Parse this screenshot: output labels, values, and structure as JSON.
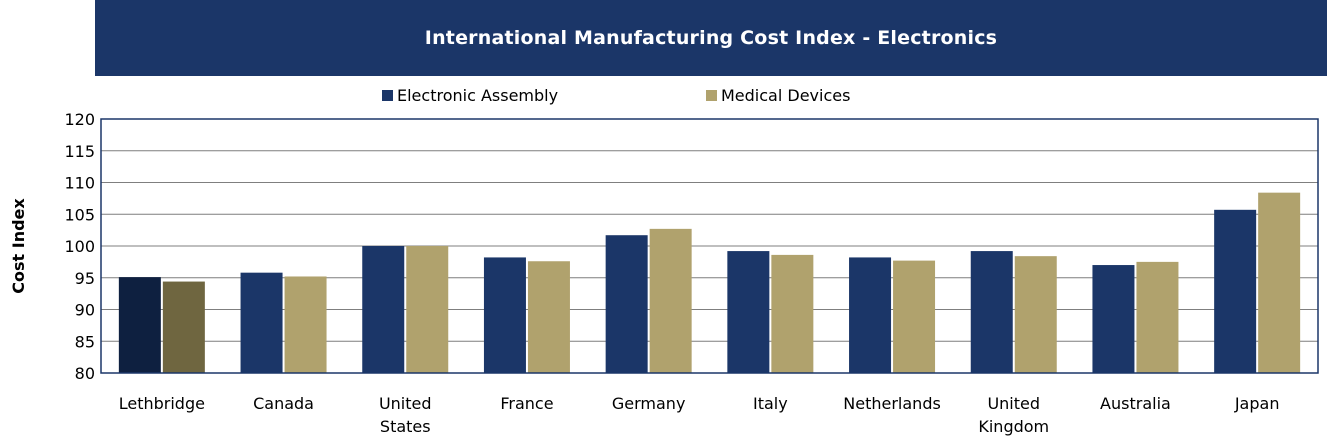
{
  "chart_data": {
    "type": "bar",
    "title": "International Manufacturing Cost Index - Electronics",
    "ylabel": "Cost Index",
    "xlabel": "",
    "ylim": [
      80,
      120
    ],
    "yticks": [
      80,
      85,
      90,
      95,
      100,
      105,
      110,
      115,
      120
    ],
    "grid": true,
    "legend_position": "top",
    "categories": [
      [
        "Lethbridge"
      ],
      [
        "Canada"
      ],
      [
        "United",
        "States"
      ],
      [
        "France"
      ],
      [
        "Germany"
      ],
      [
        "Italy"
      ],
      [
        "Netherlands"
      ],
      [
        "United",
        "Kingdom"
      ],
      [
        "Australia"
      ],
      [
        "Japan"
      ]
    ],
    "series": [
      {
        "name": "Electronic Assembly",
        "color": "#1b3668",
        "highlight_color": "#0e2040",
        "values": [
          95.1,
          95.8,
          100.0,
          98.2,
          101.7,
          99.2,
          98.2,
          99.2,
          97.0,
          105.7
        ]
      },
      {
        "name": "Medical Devices",
        "color": "#b0a26d",
        "highlight_color": "#6f6640",
        "values": [
          94.4,
          95.2,
          100.0,
          97.6,
          102.7,
          98.6,
          97.7,
          98.4,
          97.5,
          108.4
        ]
      }
    ],
    "highlight_category_index": 0
  }
}
